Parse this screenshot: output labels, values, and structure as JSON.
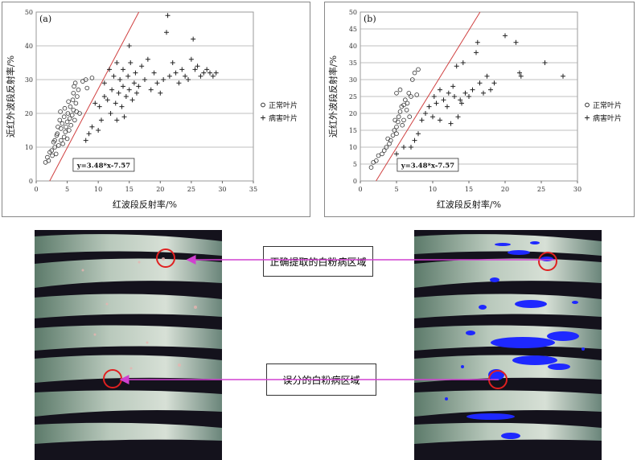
{
  "chart_data": [
    {
      "type": "scatter",
      "panel_label": "(a)",
      "xlabel": "红波段反射率/%",
      "ylabel": "近红外波段反射率/%",
      "xlim": [
        0,
        35
      ],
      "ylim": [
        0,
        50
      ],
      "x_ticks": [
        0,
        5,
        10,
        15,
        20,
        25,
        30,
        35
      ],
      "y_ticks": [
        0,
        10,
        20,
        30,
        40,
        50
      ],
      "grid": "horizontal",
      "legend_position": "right",
      "equation": "y=3.48*x-7.57",
      "fit_line": {
        "slope": 3.48,
        "intercept": -7.57,
        "color": "#d04040"
      },
      "series": [
        {
          "name": "正常叶片",
          "marker": "circle",
          "points": [
            [
              1.5,
              5.5
            ],
            [
              1.8,
              7
            ],
            [
              2,
              6
            ],
            [
              2.2,
              8.5
            ],
            [
              2.5,
              9
            ],
            [
              2.6,
              7.5
            ],
            [
              3,
              10
            ],
            [
              3,
              12
            ],
            [
              3.2,
              8
            ],
            [
              3.4,
              14
            ],
            [
              3.5,
              16
            ],
            [
              3.6,
              10.5
            ],
            [
              3.8,
              18
            ],
            [
              4,
              12
            ],
            [
              4,
              15.5
            ],
            [
              4.2,
              17
            ],
            [
              4.3,
              11
            ],
            [
              4.5,
              13
            ],
            [
              4.5,
              19
            ],
            [
              4.7,
              14.5
            ],
            [
              4.8,
              16
            ],
            [
              5,
              12.5
            ],
            [
              5,
              17.5
            ],
            [
              5.1,
              20
            ],
            [
              5.3,
              15
            ],
            [
              5.4,
              18.5
            ],
            [
              5.5,
              22
            ],
            [
              5.6,
              16.5
            ],
            [
              5.8,
              19.5
            ],
            [
              5.9,
              24
            ],
            [
              6,
              21
            ],
            [
              6,
              26
            ],
            [
              6.1,
              28
            ],
            [
              6.2,
              18
            ],
            [
              6.3,
              29
            ],
            [
              6.4,
              23
            ],
            [
              6.6,
              25
            ],
            [
              6.8,
              27
            ],
            [
              7,
              20
            ],
            [
              7.5,
              29.5
            ],
            [
              8,
              30
            ],
            [
              8.2,
              27.5
            ],
            [
              9,
              30.5
            ],
            [
              3.9,
              20.5
            ],
            [
              4.6,
              21.5
            ],
            [
              5.2,
              23.5
            ],
            [
              6.5,
              20.5
            ],
            [
              2.8,
              11.5
            ],
            [
              3.3,
              13.5
            ]
          ]
        },
        {
          "name": "病害叶片",
          "marker": "plus",
          "points": [
            [
              8,
              12
            ],
            [
              8.5,
              14
            ],
            [
              9,
              16
            ],
            [
              9.5,
              23
            ],
            [
              10,
              15
            ],
            [
              10.2,
              22
            ],
            [
              10.5,
              18
            ],
            [
              11,
              25
            ],
            [
              11,
              29
            ],
            [
              11.5,
              24
            ],
            [
              11.8,
              33
            ],
            [
              12,
              20
            ],
            [
              12.2,
              27
            ],
            [
              12.5,
              31
            ],
            [
              12.8,
              23
            ],
            [
              13,
              35
            ],
            [
              13,
              18
            ],
            [
              13.3,
              26
            ],
            [
              13.5,
              30
            ],
            [
              13.8,
              22
            ],
            [
              14,
              28
            ],
            [
              14,
              33
            ],
            [
              14.2,
              19
            ],
            [
              14.5,
              25
            ],
            [
              14.8,
              31
            ],
            [
              15,
              40
            ],
            [
              15,
              27
            ],
            [
              15.2,
              35
            ],
            [
              15.5,
              24
            ],
            [
              15.8,
              29
            ],
            [
              16,
              32
            ],
            [
              16.2,
              26
            ],
            [
              16.5,
              28
            ],
            [
              17,
              34
            ],
            [
              17.5,
              30
            ],
            [
              18,
              36
            ],
            [
              18.5,
              27
            ],
            [
              19,
              32
            ],
            [
              19.5,
              29
            ],
            [
              20,
              26
            ],
            [
              20.5,
              30
            ],
            [
              21,
              44
            ],
            [
              21.2,
              49
            ],
            [
              21.5,
              31
            ],
            [
              22,
              35
            ],
            [
              22.5,
              32
            ],
            [
              23,
              29
            ],
            [
              23.5,
              33
            ],
            [
              24,
              31
            ],
            [
              24.5,
              30
            ],
            [
              25,
              36
            ],
            [
              25.3,
              42
            ],
            [
              25.6,
              33
            ],
            [
              26,
              34
            ],
            [
              26.5,
              31
            ],
            [
              27,
              32
            ],
            [
              27.5,
              33
            ],
            [
              28,
              32
            ],
            [
              28.5,
              31
            ],
            [
              29,
              32
            ]
          ]
        }
      ]
    },
    {
      "type": "scatter",
      "panel_label": "(b)",
      "xlabel": "红波段反射率/%",
      "ylabel": "近红外波段反射率/%",
      "xlim": [
        0,
        30
      ],
      "ylim": [
        0,
        50
      ],
      "x_ticks": [
        0,
        5,
        10,
        15,
        20,
        25,
        30
      ],
      "y_ticks": [
        0,
        5,
        10,
        15,
        20,
        25,
        30,
        35,
        40,
        45,
        50
      ],
      "grid": "horizontal",
      "legend_position": "right",
      "equation": "y=3.48*x-7.57",
      "fit_line": {
        "slope": 3.48,
        "intercept": -7.57,
        "color": "#d04040"
      },
      "series": [
        {
          "name": "正常叶片",
          "marker": "circle",
          "points": [
            [
              1.5,
              4
            ],
            [
              1.8,
              5.5
            ],
            [
              2.2,
              6
            ],
            [
              2.5,
              7.5
            ],
            [
              3,
              8
            ],
            [
              3.3,
              9
            ],
            [
              3.6,
              10
            ],
            [
              4,
              11
            ],
            [
              4.2,
              12
            ],
            [
              4.5,
              13.5
            ],
            [
              4.7,
              15
            ],
            [
              5,
              14
            ],
            [
              5,
              16
            ],
            [
              5.2,
              17.5
            ],
            [
              5.3,
              19
            ],
            [
              5.5,
              20.5
            ],
            [
              5.7,
              22
            ],
            [
              5.8,
              16.5
            ],
            [
              6,
              18
            ],
            [
              6.2,
              24
            ],
            [
              6.4,
              21
            ],
            [
              6.5,
              23
            ],
            [
              6.7,
              26
            ],
            [
              7,
              25
            ],
            [
              7.2,
              30
            ],
            [
              7.5,
              32
            ],
            [
              8,
              33
            ],
            [
              5,
              26
            ],
            [
              5.5,
              27
            ],
            [
              6,
              22.5
            ],
            [
              6.8,
              19
            ],
            [
              4.8,
              18
            ],
            [
              3.8,
              12.5
            ],
            [
              7.8,
              25.5
            ]
          ]
        },
        {
          "name": "病害叶片",
          "marker": "plus",
          "points": [
            [
              5,
              8
            ],
            [
              6,
              10
            ],
            [
              7,
              10
            ],
            [
              7.5,
              12
            ],
            [
              8,
              14
            ],
            [
              8.5,
              18
            ],
            [
              9,
              20
            ],
            [
              9.5,
              22
            ],
            [
              10,
              19
            ],
            [
              10.2,
              25
            ],
            [
              10.5,
              23
            ],
            [
              11,
              18
            ],
            [
              11,
              27
            ],
            [
              11.5,
              24
            ],
            [
              12,
              22
            ],
            [
              12.2,
              26
            ],
            [
              12.5,
              17
            ],
            [
              12.8,
              28
            ],
            [
              13,
              25
            ],
            [
              13.3,
              34
            ],
            [
              13.5,
              19
            ],
            [
              13.8,
              24
            ],
            [
              14,
              23
            ],
            [
              14.2,
              35
            ],
            [
              14.5,
              26
            ],
            [
              15,
              25
            ],
            [
              15.5,
              27
            ],
            [
              16,
              38
            ],
            [
              16.2,
              41
            ],
            [
              16.5,
              29
            ],
            [
              17,
              26
            ],
            [
              17.5,
              31
            ],
            [
              18,
              27
            ],
            [
              18.5,
              29
            ],
            [
              20,
              43
            ],
            [
              21.5,
              41
            ],
            [
              22,
              32
            ],
            [
              22.2,
              31
            ],
            [
              25.5,
              35
            ],
            [
              28,
              31
            ]
          ]
        }
      ]
    }
  ],
  "callouts": {
    "correct": "正确提取的白粉病区域",
    "wrong": "误分的白粉病区域"
  },
  "colors": {
    "arrow": "#d040d0",
    "circle": "#e02020",
    "detected": "#1e28ff"
  }
}
